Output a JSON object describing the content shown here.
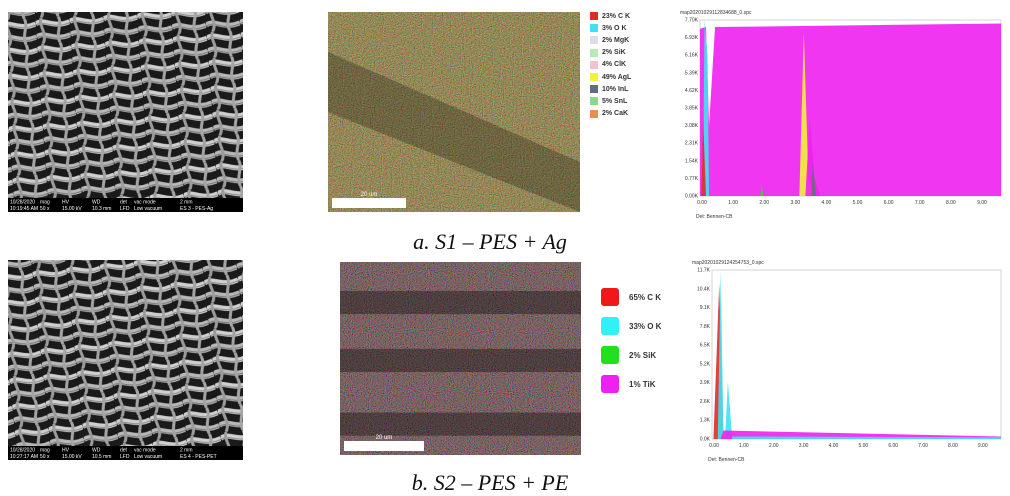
{
  "panels": [
    {
      "sem": {
        "info_top": [
          "10/28/2020",
          "mag",
          "HV",
          "WD",
          "det",
          "vac mode",
          "2 mm"
        ],
        "info_bottom": [
          "10:19:45 AM",
          "50 x",
          "15.00 kV",
          "10.3 mm",
          "LFD",
          "Low vacuum",
          "ES 3 - PES-Ag"
        ]
      },
      "map": {
        "scale": "20 um",
        "legend": [
          {
            "label": "23% C K",
            "color": "#e02a2a"
          },
          {
            "label": "3% O K",
            "color": "#3fe3f0"
          },
          {
            "label": "2% MgK",
            "color": "#dcdcec"
          },
          {
            "label": "2% SiK",
            "color": "#b4ecb4"
          },
          {
            "label": "4% ClK",
            "color": "#f2c2d2"
          },
          {
            "label": "49% AgL",
            "color": "#f2f23a"
          },
          {
            "label": "10% InL",
            "color": "#5f6f80"
          },
          {
            "label": "5% SnL",
            "color": "#8fd48f"
          },
          {
            "label": "2% CaK",
            "color": "#f08a52"
          }
        ]
      },
      "spectrum": {
        "title": "map20201029112834688_0.spc",
        "yticks": [
          "0.00K",
          "0.77K",
          "1.54K",
          "2.31K",
          "3.08K",
          "3.85K",
          "4.62K",
          "5.39K",
          "6.16K",
          "6.93K",
          "7.70K"
        ],
        "xticks": [
          "0.00",
          "1.00",
          "2.00",
          "3.00",
          "4.00",
          "5.00",
          "6.00",
          "7.00",
          "8.00",
          "9.00"
        ],
        "footer": "Det: Bennen-CB"
      },
      "caption": "a. S1 – PES + Ag"
    },
    {
      "sem": {
        "info_top": [
          "10/28/2020",
          "mag",
          "HV",
          "WD",
          "det",
          "vac mode",
          "2 mm"
        ],
        "info_bottom": [
          "10:27:17 AM",
          "50 x",
          "15.00 kV",
          "10.5 mm",
          "LFD",
          "Low vacuum",
          "ES 4 - PES-PET"
        ]
      },
      "map": {
        "scale": "20 um",
        "legend": [
          {
            "label": "65% C K",
            "color": "#f01818"
          },
          {
            "label": "33% O K",
            "color": "#30f0f8"
          },
          {
            "label": "2% SiK",
            "color": "#20e020"
          },
          {
            "label": "1% TiK",
            "color": "#f020f0"
          }
        ]
      },
      "spectrum": {
        "title": "map20201029124254753_0.spc",
        "yticks": [
          "0.0K",
          "1.3K",
          "2.6K",
          "3.9K",
          "5.2K",
          "6.5K",
          "7.8K",
          "9.1K",
          "10.4K",
          "11.7K"
        ],
        "xticks": [
          "0.00",
          "1.00",
          "2.00",
          "3.00",
          "4.00",
          "5.00",
          "6.00",
          "7.00",
          "8.00",
          "9.00"
        ],
        "footer": "Det: Bennen-CB"
      },
      "caption": "b. S2 – PES + PE"
    }
  ]
}
